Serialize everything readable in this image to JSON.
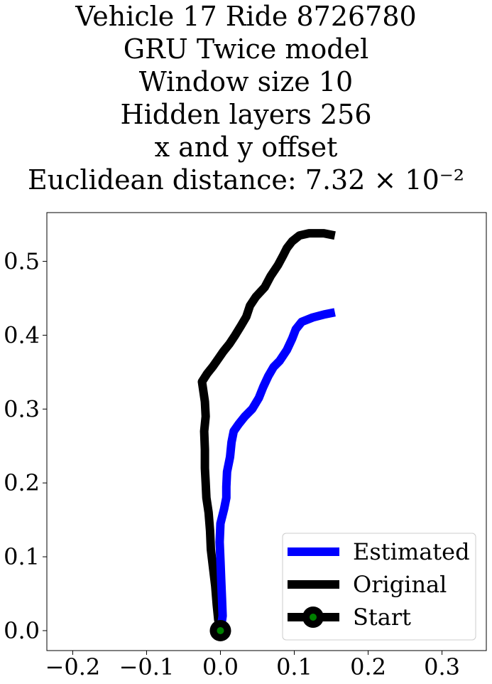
{
  "chart_data": {
    "type": "line",
    "title_lines": [
      "Vehicle 17 Ride 8726780",
      "GRU Twice model",
      "Window size 10",
      "Hidden layers 256",
      "x and y offset",
      "Euclidean distance: 7.32 × 10⁻²"
    ],
    "xlabel": "",
    "ylabel": "",
    "xlim": [
      -0.235,
      0.36
    ],
    "ylim": [
      -0.027,
      0.566
    ],
    "x_ticks": [
      -0.2,
      -0.1,
      0.0,
      0.1,
      0.2,
      0.3
    ],
    "x_tick_labels": [
      "−0.2",
      "−0.1",
      "0.0",
      "0.1",
      "0.2",
      "0.3"
    ],
    "y_ticks": [
      0.0,
      0.1,
      0.2,
      0.3,
      0.4,
      0.5
    ],
    "y_tick_labels": [
      "0.0",
      "0.1",
      "0.2",
      "0.3",
      "0.4",
      "0.5"
    ],
    "grid": false,
    "legend_position": "lower-right",
    "series": [
      {
        "name": "Estimated",
        "color": "#0000ff",
        "points": [
          [
            0.0,
            0.0
          ],
          [
            0.003,
            0.02
          ],
          [
            0.002,
            0.045
          ],
          [
            0.001,
            0.07
          ],
          [
            0.0,
            0.095
          ],
          [
            -0.001,
            0.12
          ],
          [
            0.0,
            0.145
          ],
          [
            0.005,
            0.165
          ],
          [
            0.008,
            0.18
          ],
          [
            0.008,
            0.195
          ],
          [
            0.009,
            0.215
          ],
          [
            0.013,
            0.235
          ],
          [
            0.015,
            0.255
          ],
          [
            0.018,
            0.27
          ],
          [
            0.025,
            0.28
          ],
          [
            0.033,
            0.29
          ],
          [
            0.043,
            0.3
          ],
          [
            0.052,
            0.315
          ],
          [
            0.058,
            0.33
          ],
          [
            0.065,
            0.345
          ],
          [
            0.072,
            0.357
          ],
          [
            0.08,
            0.365
          ],
          [
            0.09,
            0.38
          ],
          [
            0.097,
            0.395
          ],
          [
            0.102,
            0.408
          ],
          [
            0.11,
            0.418
          ],
          [
            0.125,
            0.424
          ],
          [
            0.14,
            0.428
          ],
          [
            0.155,
            0.431
          ]
        ]
      },
      {
        "name": "Original",
        "color": "#000000",
        "points": [
          [
            0.0,
            0.0
          ],
          [
            -0.003,
            0.015
          ],
          [
            -0.005,
            0.035
          ],
          [
            -0.007,
            0.06
          ],
          [
            -0.01,
            0.085
          ],
          [
            -0.013,
            0.11
          ],
          [
            -0.014,
            0.135
          ],
          [
            -0.016,
            0.16
          ],
          [
            -0.019,
            0.18
          ],
          [
            -0.02,
            0.2
          ],
          [
            -0.021,
            0.22
          ],
          [
            -0.021,
            0.245
          ],
          [
            -0.022,
            0.27
          ],
          [
            -0.02,
            0.29
          ],
          [
            -0.021,
            0.31
          ],
          [
            -0.025,
            0.337
          ],
          [
            -0.018,
            0.348
          ],
          [
            -0.01,
            0.358
          ],
          [
            -0.003,
            0.368
          ],
          [
            0.004,
            0.378
          ],
          [
            0.012,
            0.388
          ],
          [
            0.02,
            0.4
          ],
          [
            0.028,
            0.413
          ],
          [
            0.035,
            0.425
          ],
          [
            0.04,
            0.44
          ],
          [
            0.048,
            0.452
          ],
          [
            0.06,
            0.465
          ],
          [
            0.068,
            0.48
          ],
          [
            0.078,
            0.495
          ],
          [
            0.085,
            0.508
          ],
          [
            0.09,
            0.518
          ],
          [
            0.097,
            0.527
          ],
          [
            0.107,
            0.535
          ],
          [
            0.12,
            0.538
          ],
          [
            0.14,
            0.538
          ],
          [
            0.155,
            0.535
          ]
        ]
      }
    ],
    "start_point": {
      "name": "Start",
      "x": 0.0,
      "y": 0.0,
      "outer_color": "#000000",
      "inner_color": "#008000"
    }
  }
}
